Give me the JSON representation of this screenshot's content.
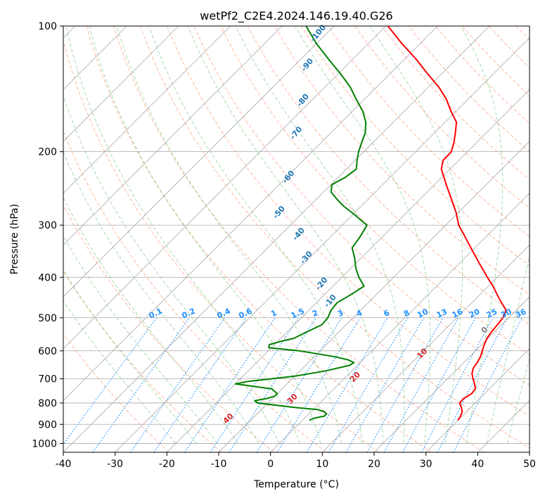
{
  "chart_data": {
    "type": "skew-t",
    "title": "wetPf2_C2E4.2024.146.19.40.G26",
    "xlabel": "Temperature (°C)",
    "ylabel": "Pressure (hPa)",
    "xlim": [
      -40,
      50
    ],
    "ylim": [
      1050,
      100
    ],
    "x_ticks": [
      -40,
      -30,
      -20,
      -10,
      0,
      10,
      20,
      30,
      40,
      50
    ],
    "y_ticks": [
      100,
      200,
      300,
      400,
      500,
      600,
      700,
      800,
      900,
      1000
    ],
    "y_scale": "log",
    "grid": true,
    "temperature_series": {
      "name": "",
      "color": "#ff0000",
      "p": [
        880,
        860,
        840,
        820,
        800,
        780,
        760,
        740,
        720,
        700,
        680,
        660,
        640,
        620,
        600,
        580,
        560,
        540,
        520,
        500,
        480,
        450,
        420,
        400,
        370,
        350,
        320,
        300,
        280,
        260,
        240,
        220,
        210,
        200,
        190,
        180,
        170,
        160,
        150,
        140,
        130,
        120,
        110,
        100
      ],
      "t": [
        30.0,
        29.7,
        29.2,
        28.2,
        27.0,
        26.9,
        27.5,
        27.3,
        26.2,
        24.9,
        23.7,
        22.9,
        22.6,
        22.1,
        21.3,
        20.5,
        19.8,
        19.4,
        19.2,
        18.9,
        18.1,
        14.5,
        10.9,
        8.1,
        3.8,
        0.8,
        -4.0,
        -7.5,
        -10.4,
        -13.9,
        -17.7,
        -21.7,
        -23.0,
        -23.1,
        -24.4,
        -26.0,
        -27.8,
        -31.0,
        -34.1,
        -38.0,
        -42.8,
        -47.8,
        -53.6,
        -59.6
      ]
    },
    "dewpoint_series": {
      "name": "",
      "color": "#008000",
      "p": [
        880,
        870,
        860,
        850,
        840,
        830,
        820,
        800,
        790,
        780,
        770,
        760,
        740,
        730,
        720,
        710,
        700,
        690,
        670,
        650,
        640,
        630,
        620,
        600,
        590,
        580,
        570,
        560,
        540,
        520,
        500,
        480,
        460,
        440,
        420,
        400,
        380,
        360,
        340,
        320,
        300,
        280,
        270,
        260,
        250,
        240,
        230,
        220,
        210,
        200,
        190,
        180,
        170,
        160,
        150,
        140,
        130,
        120,
        110,
        100
      ],
      "t": [
        1.3,
        1.8,
        3.4,
        3.4,
        2.6,
        1.0,
        -4.0,
        -12.0,
        -13.0,
        -11.0,
        -10.0,
        -10.0,
        -12.0,
        -16.0,
        -20.0,
        -18.0,
        -14.0,
        -10.0,
        -5.0,
        -1.5,
        -1.2,
        -3.0,
        -6.0,
        -14.0,
        -20.5,
        -21.0,
        -19.5,
        -17.5,
        -16.2,
        -14.7,
        -14.9,
        -15.7,
        -16.0,
        -14.9,
        -14.0,
        -16.7,
        -19.1,
        -21.2,
        -23.7,
        -24.3,
        -25.2,
        -30.5,
        -33.4,
        -36.0,
        -38.5,
        -39.8,
        -38.6,
        -38.1,
        -39.6,
        -41.0,
        -42.2,
        -43.4,
        -45.3,
        -48.0,
        -51.5,
        -55.1,
        -59.6,
        -64.7,
        -70.1,
        -75.4
      ]
    },
    "dry_adiabat_labels": [
      "-100",
      "-90",
      "-80",
      "-70",
      "-60",
      "-50",
      "-40",
      "-30",
      "-20",
      "-10"
    ],
    "moist_adiabat_labels": [
      "0",
      "10",
      "20",
      "30",
      "40"
    ],
    "mixing_ratio_labels": [
      "0.1",
      "0.2",
      "0.4",
      "0.6",
      "1",
      "1.5",
      "2",
      "3",
      "4",
      "6",
      "8",
      "10",
      "13",
      "16",
      "20",
      "25",
      "30",
      "36"
    ],
    "mixing_ratio_values": [
      0.1,
      0.2,
      0.4,
      0.6,
      1,
      1.5,
      2,
      3,
      4,
      6,
      8,
      10,
      13,
      16,
      20,
      25,
      30,
      36
    ],
    "colors": {
      "temperature": "#ff0000",
      "dewpoint": "#008000",
      "dry_adiabat": "#ff7f50",
      "moist_adiabat": "#3cb043",
      "mixing_ratio": "#1e90ff",
      "isotherm": "#a9a9a9",
      "isobar": "#a9a9a9"
    }
  }
}
